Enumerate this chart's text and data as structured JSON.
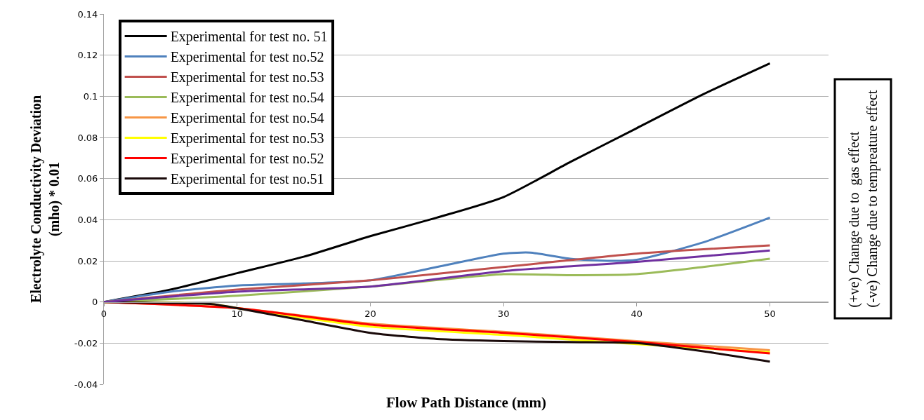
{
  "chart_data": {
    "type": "line",
    "xlabel": "Flow Path Distance (mm)",
    "ylabel": "Electrolyte Conductivity Deviation\n(mho) * 0.01",
    "xlim": [
      0,
      54.4
    ],
    "xticks": [
      0,
      10,
      20,
      30,
      40,
      50
    ],
    "ylim": [
      -0.04,
      0.14
    ],
    "yticks": [
      -0.04,
      -0.02,
      0,
      0.02,
      0.04,
      0.06,
      0.08,
      0.1,
      0.12,
      0.14
    ],
    "grid": "y",
    "legend": "top left",
    "marker": "none",
    "line_style": "solid",
    "annotations": [
      "(+ve) Change due to  gas effect\n(-ve) Change due to tempreature effect"
    ],
    "series": [
      {
        "name": "Experimental for test no. 51",
        "color": "#000000",
        "x": [
          0,
          5,
          10,
          15,
          20,
          25,
          30,
          35,
          40,
          45,
          50
        ],
        "values": [
          0,
          0.006,
          0.014,
          0.022,
          0.032,
          0.041,
          0.051,
          0.068,
          0.0845,
          0.101,
          0.116
        ]
      },
      {
        "name": "Experimental for test no.52",
        "color": "#4f81bd",
        "x": [
          0,
          5,
          10,
          15,
          20,
          25,
          30,
          32,
          35,
          38,
          40,
          45,
          50
        ],
        "values": [
          0,
          0.005,
          0.008,
          0.009,
          0.0105,
          0.017,
          0.0235,
          0.024,
          0.021,
          0.02,
          0.0205,
          0.029,
          0.041
        ]
      },
      {
        "name": "Experimental for test no.53",
        "color": "#c0504d",
        "x": [
          0,
          10,
          20,
          30,
          40,
          50
        ],
        "values": [
          0,
          0.006,
          0.0105,
          0.017,
          0.0235,
          0.0275
        ]
      },
      {
        "name": "Experimental for test no.54",
        "color": "#9bbb59",
        "x": [
          0,
          10,
          20,
          30,
          35,
          40,
          45,
          50
        ],
        "values": [
          0,
          0.003,
          0.0075,
          0.0135,
          0.013,
          0.0135,
          0.017,
          0.021
        ]
      },
      {
        "name": "Experimental for test no.54",
        "color": "#f79646",
        "x": [
          0,
          10,
          20,
          30,
          40,
          50
        ],
        "values": [
          0,
          -0.003,
          -0.0105,
          -0.0145,
          -0.019,
          -0.0235
        ]
      },
      {
        "name": "Experimental for test no.53",
        "color": "#ffff00",
        "x": [
          0,
          8,
          10,
          20,
          30,
          40,
          50
        ],
        "values": [
          0,
          -0.001,
          -0.003,
          -0.012,
          -0.016,
          -0.0205,
          -0.0245
        ]
      },
      {
        "name": "Experimental for test no.52",
        "color": "#ff0000",
        "x": [
          0,
          10,
          20,
          30,
          40,
          50
        ],
        "values": [
          0,
          -0.003,
          -0.011,
          -0.015,
          -0.0195,
          -0.025
        ]
      },
      {
        "name": "Experimental for test no.51",
        "color": "#1a0a0a",
        "x": [
          0,
          5,
          8,
          10,
          15,
          20,
          25,
          30,
          35,
          40,
          45,
          50
        ],
        "values": [
          0,
          -0.0005,
          -0.001,
          -0.003,
          -0.009,
          -0.015,
          -0.018,
          -0.019,
          -0.0195,
          -0.02,
          -0.024,
          -0.029
        ]
      },
      {
        "color": "#7030a0",
        "x": [
          0,
          10,
          20,
          30,
          40,
          50
        ],
        "values": [
          0,
          0.005,
          0.0075,
          0.015,
          0.0195,
          0.025
        ]
      }
    ]
  }
}
